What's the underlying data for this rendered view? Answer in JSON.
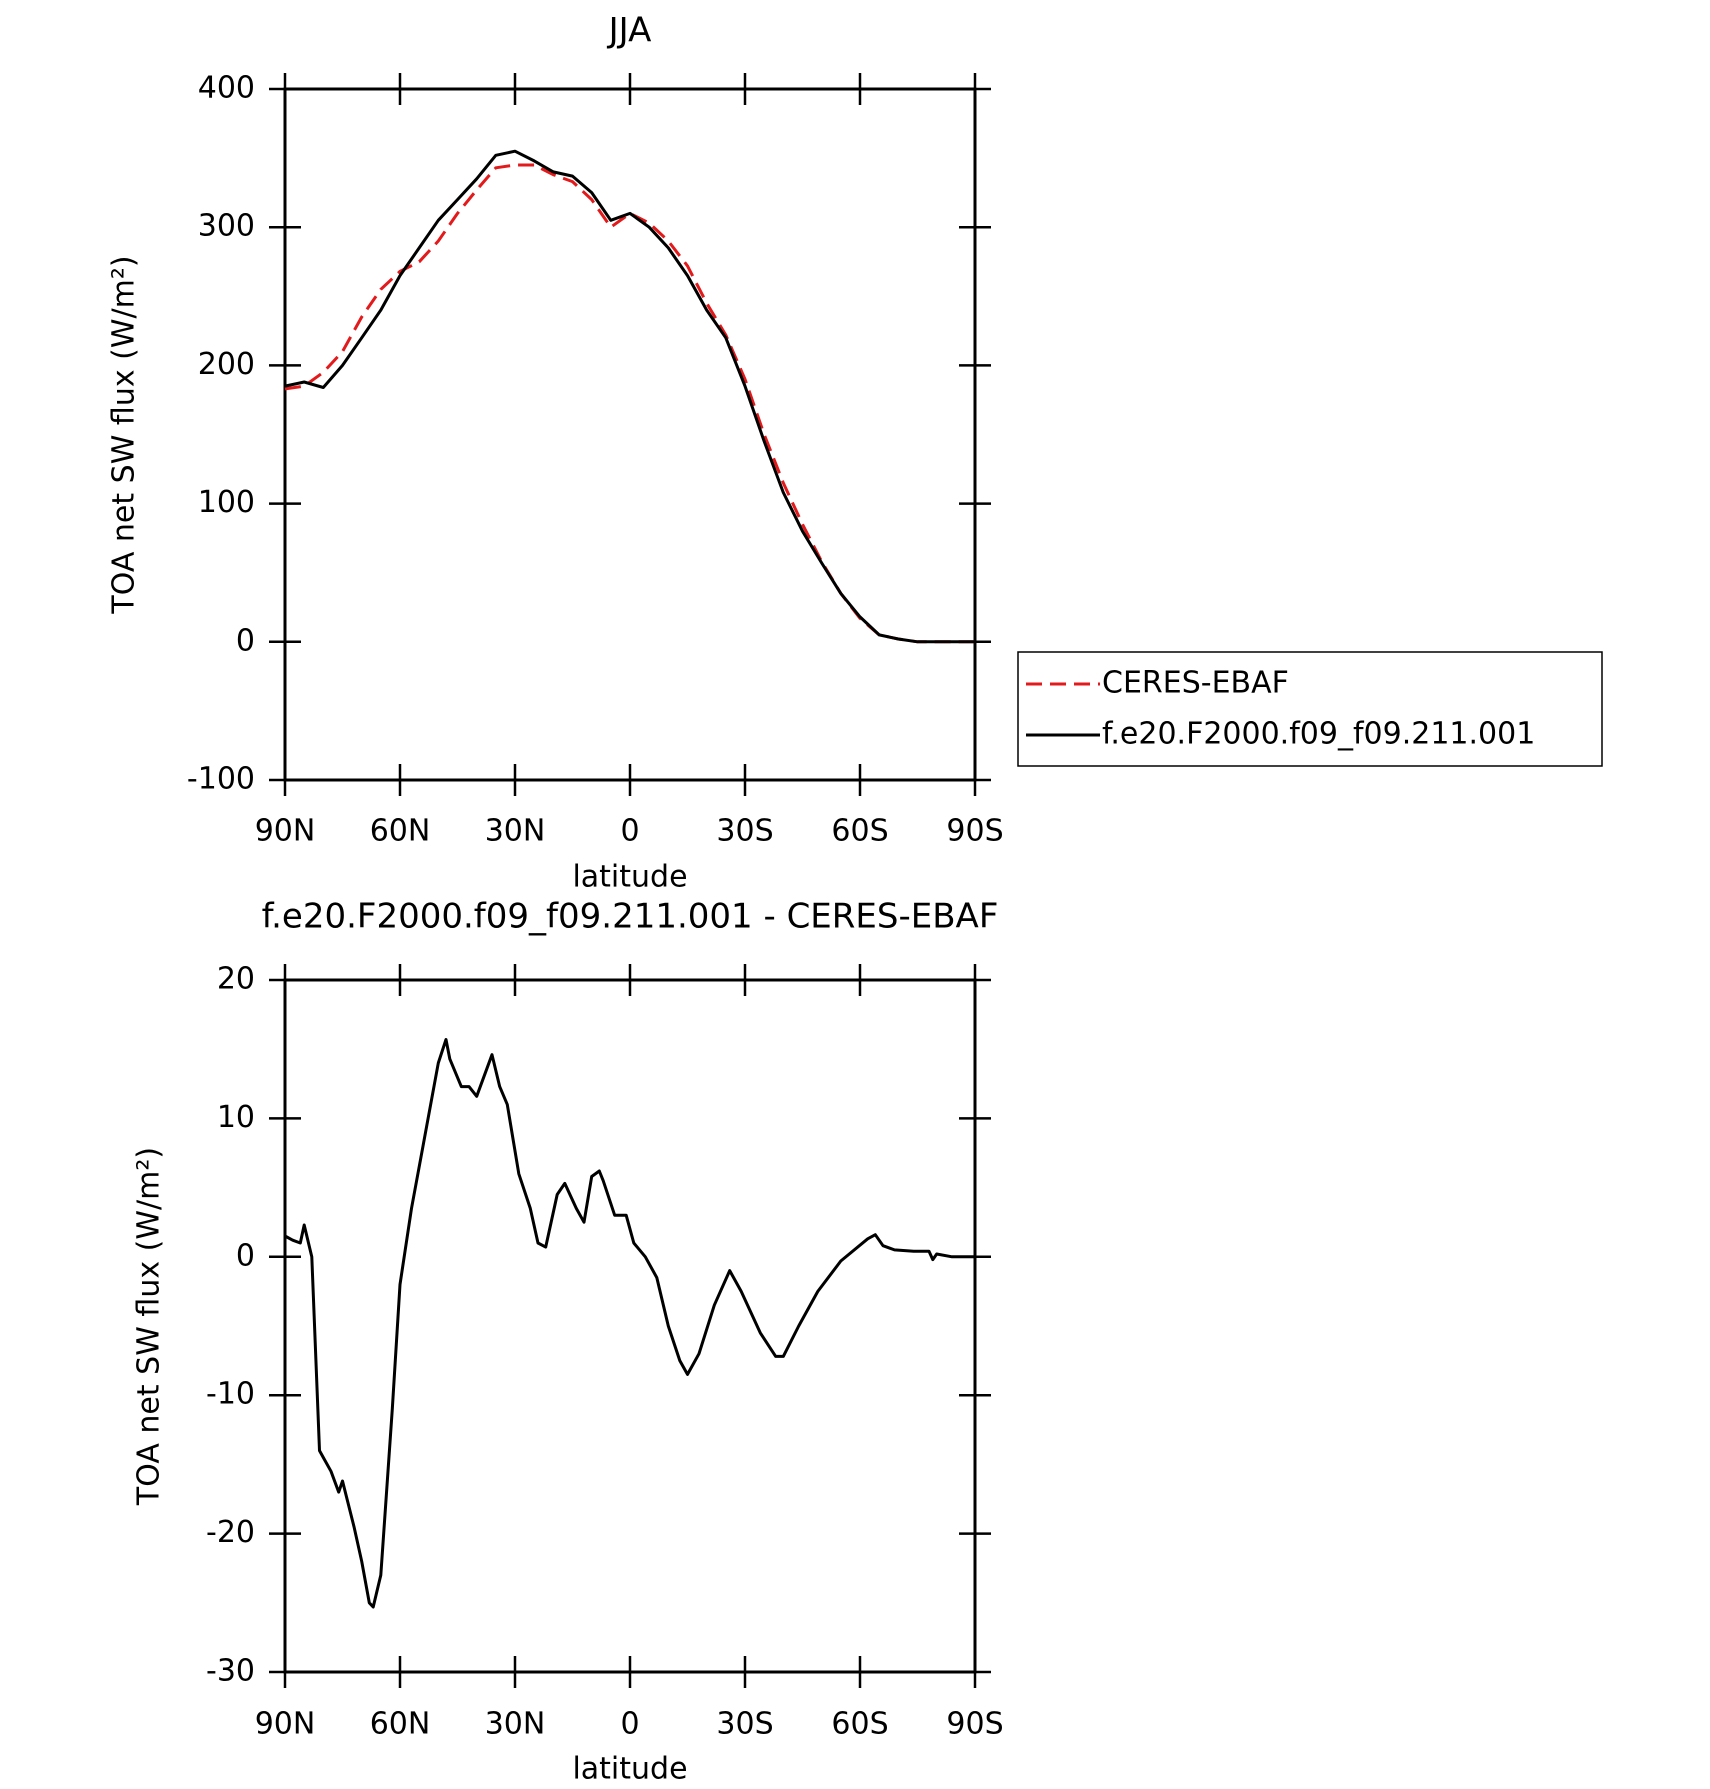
{
  "chart_data": [
    {
      "type": "line",
      "title": "JJA",
      "x_label": "latitude",
      "y_label": "TOA net SW flux (W/m²)",
      "xlim": [
        90,
        -90
      ],
      "ylim": [
        -100,
        400
      ],
      "xticks": [
        {
          "value": 90,
          "label": "90N"
        },
        {
          "value": 60,
          "label": "60N"
        },
        {
          "value": 30,
          "label": "30N"
        },
        0,
        {
          "value": -30,
          "label": "30S"
        },
        {
          "value": -60,
          "label": "60S"
        },
        {
          "value": -90,
          "label": "90S"
        }
      ],
      "yticks": [
        -100,
        0,
        100,
        200,
        300,
        400
      ],
      "legend_position": "right",
      "x": [
        90,
        85,
        80,
        75,
        70,
        65,
        60,
        55,
        50,
        45,
        40,
        35,
        30,
        25,
        20,
        15,
        10,
        5,
        0,
        -5,
        -10,
        -15,
        -20,
        -25,
        -30,
        -35,
        -40,
        -45,
        -50,
        -55,
        -60,
        -65,
        -70,
        -75,
        -80,
        -85,
        -90
      ],
      "series": [
        {
          "name": "CERES-EBAF",
          "color": "#e31a1c",
          "line_style": "dashed",
          "values": [
            183,
            185,
            195,
            210,
            235,
            255,
            268,
            275,
            290,
            310,
            327,
            343,
            345,
            345,
            338,
            333,
            320,
            300,
            310,
            303,
            290,
            272,
            245,
            222,
            190,
            150,
            115,
            85,
            58,
            35,
            17,
            5,
            2,
            0,
            0,
            0,
            0
          ]
        },
        {
          "name": "f.e20.F2000.f09_f09.211.001",
          "color": "#000000",
          "line_style": "solid",
          "values": [
            185,
            188,
            184,
            200,
            220,
            240,
            265,
            285,
            305,
            320,
            335,
            352,
            355,
            348,
            340,
            337,
            325,
            305,
            310,
            300,
            285,
            265,
            240,
            220,
            185,
            145,
            108,
            80,
            57,
            35,
            18,
            5,
            2,
            0,
            0,
            0,
            0
          ]
        }
      ]
    },
    {
      "type": "line",
      "title": "f.e20.F2000.f09_f09.211.001 - CERES-EBAF",
      "x_label": "latitude",
      "y_label": "TOA net SW flux (W/m²)",
      "xlim": [
        90,
        -90
      ],
      "ylim": [
        -30,
        20
      ],
      "xticks": [
        {
          "value": 90,
          "label": "90N"
        },
        {
          "value": 60,
          "label": "60N"
        },
        {
          "value": 30,
          "label": "30N"
        },
        0,
        {
          "value": -30,
          "label": "30S"
        },
        {
          "value": -60,
          "label": "60S"
        },
        {
          "value": -90,
          "label": "90S"
        }
      ],
      "yticks": [
        -30,
        -20,
        -10,
        0,
        10,
        20
      ],
      "color": "#000000",
      "x": [
        90,
        88,
        86,
        85,
        83,
        81,
        80,
        78,
        76,
        75,
        72,
        70,
        68,
        67,
        65,
        62,
        60,
        57,
        54,
        50,
        48,
        47,
        44,
        42,
        40,
        36,
        34,
        32,
        29,
        26,
        24,
        22,
        19,
        17,
        14,
        12,
        10,
        8,
        7,
        4,
        1,
        -1,
        -4,
        -7,
        -10,
        -13,
        -15,
        -18,
        -22,
        -26,
        -29,
        -34,
        -38,
        -40,
        -44,
        -49,
        -55,
        -62,
        -64,
        -66,
        -69,
        -74,
        -78,
        -79,
        -80,
        -84,
        -90
      ],
      "values": [
        1.5,
        1.2,
        1.0,
        2.3,
        0,
        -14,
        -14.5,
        -15.5,
        -17,
        -16.2,
        -19.5,
        -22,
        -25,
        -25.3,
        -23,
        -11,
        -2,
        3.5,
        8,
        14,
        15.7,
        14.3,
        12.3,
        12.3,
        11.6,
        14.6,
        12.3,
        11,
        6,
        3.5,
        1,
        0.7,
        4.5,
        5.3,
        3.5,
        2.5,
        5.8,
        6.2,
        5.5,
        3,
        3,
        1,
        0,
        -1.5,
        -5,
        -7.5,
        -8.5,
        -7,
        -3.5,
        -1,
        -2.5,
        -5.5,
        -7.2,
        -7.2,
        -5,
        -2.5,
        -0.3,
        1.3,
        1.6,
        0.8,
        0.5,
        0.4,
        0.4,
        -0.2,
        0.2,
        0,
        0
      ]
    }
  ]
}
